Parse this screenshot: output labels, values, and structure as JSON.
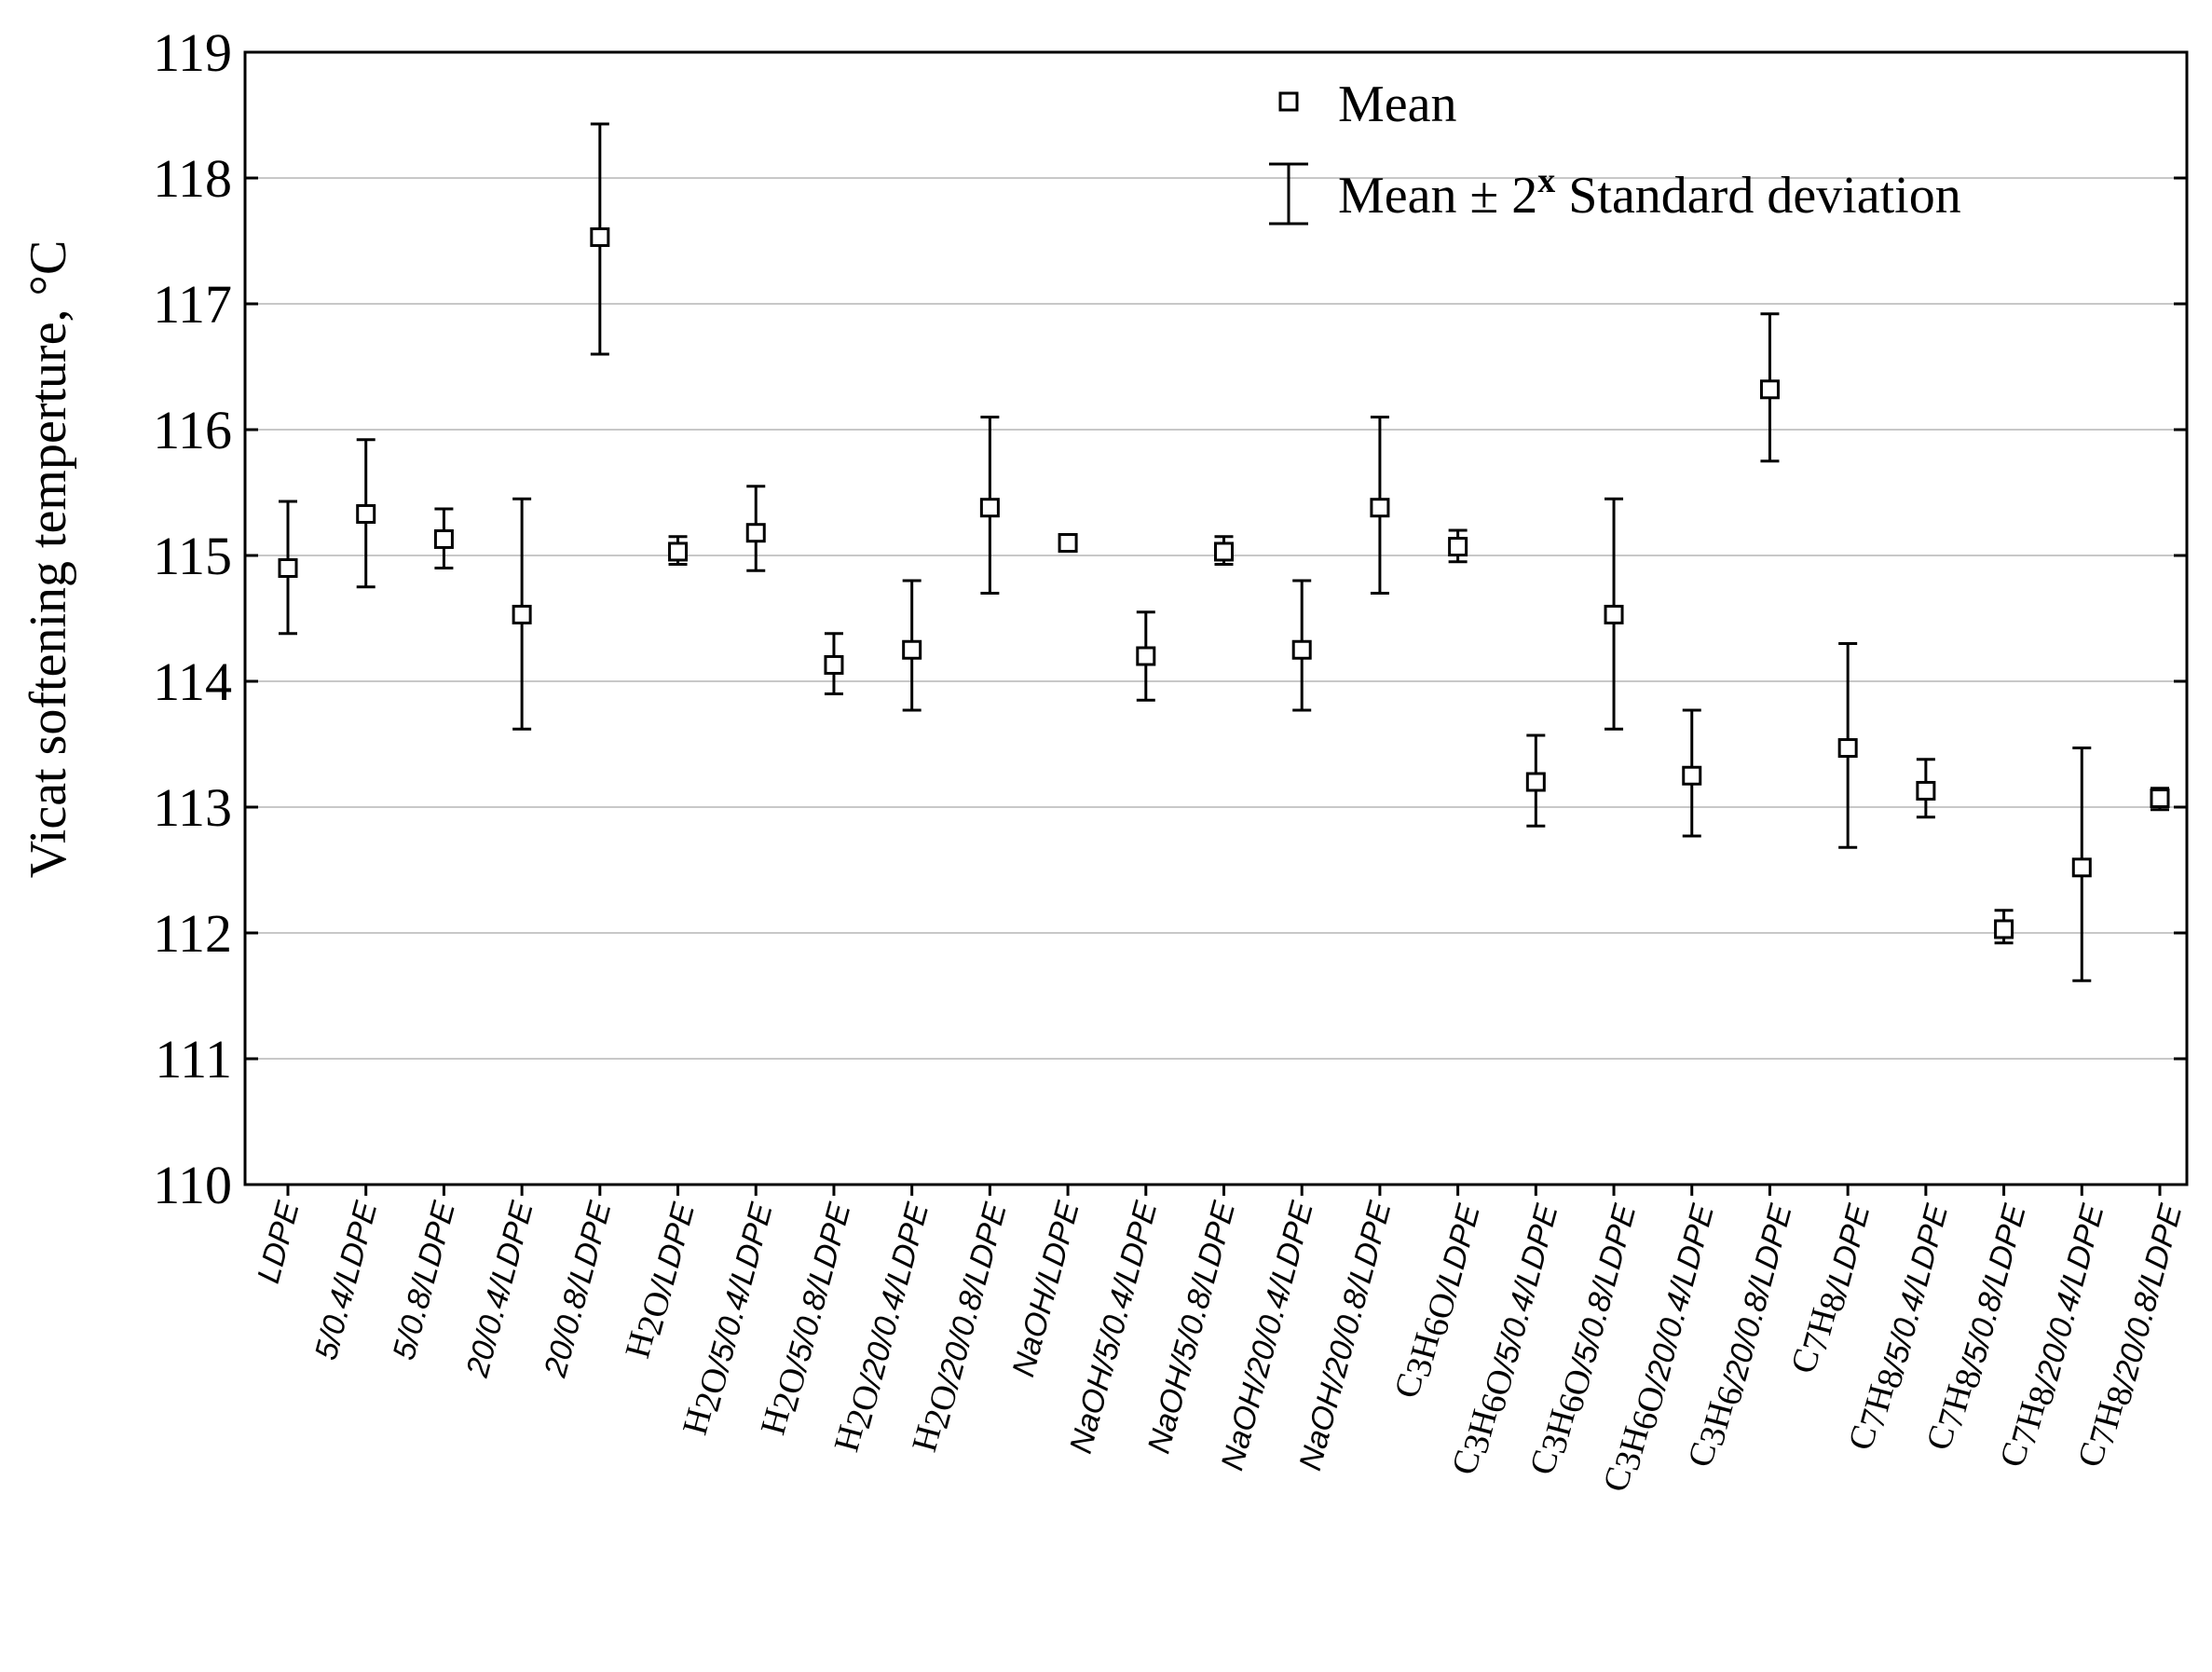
{
  "chart_data": {
    "type": "scatter",
    "subtype": "mean-with-error-bars",
    "ylabel": "Vicat softening temperture,  °C",
    "ylim": [
      110,
      119
    ],
    "yticks": [
      110,
      111,
      112,
      113,
      114,
      115,
      116,
      117,
      118,
      119
    ],
    "grid": "horizontal",
    "legend": {
      "position": "top-right",
      "mean_label": "Mean",
      "error_label_prefix": "Mean ± 2",
      "error_label_sup": "x",
      "error_label_suffix": " Standard deviation"
    },
    "categories": [
      "LDPE",
      "5/0.4/LDPE",
      "5/0.8/LDPE",
      "20/0.4/LDPE",
      "20/0.8/LDPE",
      "H2O/LDPE",
      "H2O/5/0.4/LDPE",
      "H2O/5/0.8/LDPE",
      "H2O/20/0.4/LDPE",
      "H2O/20/0.8/LDPE",
      "NaOH/LDPE",
      "NaOH/5/0.4/LDPE",
      "NaOH/5/0.8/LDPE",
      "NaOH/20/0.4/LDPE",
      "NaOH/20/0.8/LDPE",
      "C3H6O/LDPE",
      "C3H6O/5/0.4/LDPE",
      "C3H6O/5/0.8/LDPE",
      "C3H6O/20/0.4/LDPE",
      "C3H6/20/0.8/LDPE",
      "C7H8/LDPE",
      "C7H8/5/0.4/LDPE",
      "C7H8/5/0.8/LDPE",
      "C7H8/20/0.4/LDPE",
      "C7H8/20/0.8/LDPE"
    ],
    "series": [
      {
        "name": "Mean",
        "values": [
          114.9,
          115.33,
          115.13,
          114.53,
          117.53,
          115.03,
          115.18,
          114.13,
          114.25,
          115.38,
          115.1,
          114.2,
          115.03,
          114.25,
          115.38,
          115.07,
          113.2,
          114.53,
          113.25,
          116.32,
          113.47,
          113.13,
          112.03,
          112.52,
          113.07
        ],
        "lower": [
          114.38,
          114.75,
          114.9,
          113.62,
          116.6,
          114.93,
          114.88,
          113.9,
          113.77,
          114.7,
          115.05,
          113.85,
          114.93,
          113.77,
          114.7,
          114.95,
          112.85,
          113.62,
          112.77,
          115.75,
          112.68,
          112.92,
          111.92,
          111.62,
          112.98
        ],
        "upper": [
          115.43,
          115.92,
          115.37,
          115.45,
          118.43,
          115.15,
          115.55,
          114.38,
          114.8,
          116.1,
          115.15,
          114.55,
          115.15,
          114.8,
          116.1,
          115.2,
          113.57,
          115.45,
          113.77,
          116.92,
          114.3,
          113.38,
          112.18,
          113.47,
          113.15
        ]
      }
    ]
  }
}
